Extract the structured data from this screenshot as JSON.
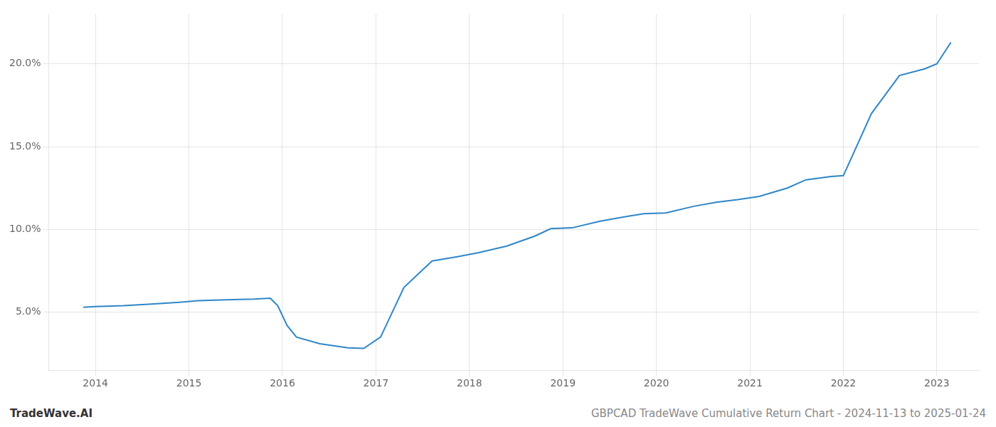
{
  "chart_data": {
    "type": "line",
    "x": [
      2013.87,
      2014.0,
      2014.3,
      2014.6,
      2014.9,
      2015.1,
      2015.4,
      2015.7,
      2015.87,
      2015.95,
      2016.05,
      2016.15,
      2016.4,
      2016.7,
      2016.87,
      2017.05,
      2017.3,
      2017.6,
      2017.87,
      2018.1,
      2018.4,
      2018.7,
      2018.87,
      2019.1,
      2019.4,
      2019.7,
      2019.87,
      2020.1,
      2020.4,
      2020.65,
      2020.87,
      2021.1,
      2021.4,
      2021.6,
      2021.87,
      2022.0,
      2022.3,
      2022.6,
      2022.87,
      2023.0,
      2023.15
    ],
    "values": [
      5.3,
      5.35,
      5.4,
      5.5,
      5.6,
      5.7,
      5.75,
      5.8,
      5.85,
      5.4,
      4.2,
      3.5,
      3.1,
      2.85,
      2.82,
      3.5,
      6.5,
      8.1,
      8.35,
      8.6,
      9.0,
      9.6,
      10.05,
      10.1,
      10.5,
      10.8,
      10.95,
      11.0,
      11.4,
      11.65,
      11.8,
      12.0,
      12.5,
      13.0,
      13.2,
      13.25,
      17.0,
      19.3,
      19.7,
      20.0,
      21.3
    ],
    "color": "#2e86c8",
    "xlim": [
      2013.5,
      2023.45
    ],
    "ylim": [
      1.5,
      23.0
    ],
    "xticks": [
      2014,
      2015,
      2016,
      2017,
      2018,
      2019,
      2020,
      2021,
      2022,
      2023
    ],
    "yticks": [
      {
        "value": 5.0,
        "label": "5.0%"
      },
      {
        "value": 10.0,
        "label": "10.0%"
      },
      {
        "value": 15.0,
        "label": "15.0%"
      },
      {
        "value": 20.0,
        "label": "20.0%"
      }
    ],
    "grid": true,
    "annotations": [
      "TradeWave.AI",
      "GBPCAD TradeWave Cumulative Return Chart - 2024-11-13 to 2025-01-24"
    ]
  }
}
